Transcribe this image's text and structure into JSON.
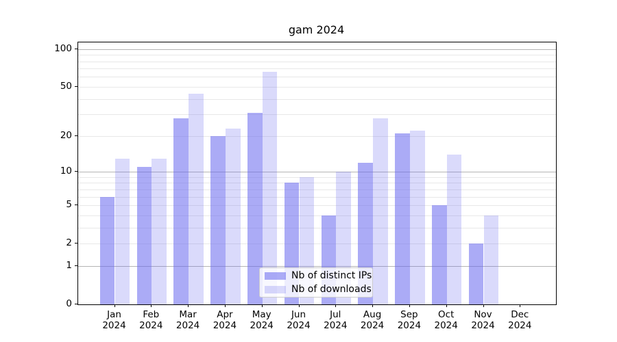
{
  "chart_data": {
    "type": "bar",
    "title": "gam 2024",
    "categories": [
      "Jan",
      "Feb",
      "Mar",
      "Apr",
      "May",
      "Jun",
      "Jul",
      "Aug",
      "Sep",
      "Oct",
      "Nov",
      "Dec"
    ],
    "category_year": "2024",
    "series": [
      {
        "name": "Nb of distinct IPs",
        "values": [
          6,
          11,
          28,
          20,
          31,
          8,
          4,
          12,
          21,
          5,
          2,
          0
        ],
        "color": "rgba(102,102,238,0.55)"
      },
      {
        "name": "Nb of downloads",
        "values": [
          13,
          13,
          44,
          23,
          66,
          9,
          10,
          28,
          22,
          14,
          4,
          0
        ],
        "color": "rgba(102,102,238,0.24)"
      }
    ],
    "xlabel": "",
    "ylabel": "",
    "yscale": "log1p",
    "ylim": [
      0,
      113
    ],
    "yticks": [
      0,
      1,
      2,
      5,
      10,
      20,
      50,
      100
    ],
    "major_gridlines": [
      1,
      10,
      100
    ],
    "minor_gridlines": [
      2,
      3,
      4,
      5,
      6,
      7,
      8,
      9,
      20,
      30,
      40,
      50,
      60,
      70,
      80,
      90
    ],
    "grid": true,
    "legend_position": "lower center",
    "colors": {
      "bar_base": "#6666ee",
      "major_grid": "#b4b4b4",
      "minor_grid": "#e8e8e8",
      "spine": "#000000",
      "legend_border": "#cccccc"
    }
  }
}
